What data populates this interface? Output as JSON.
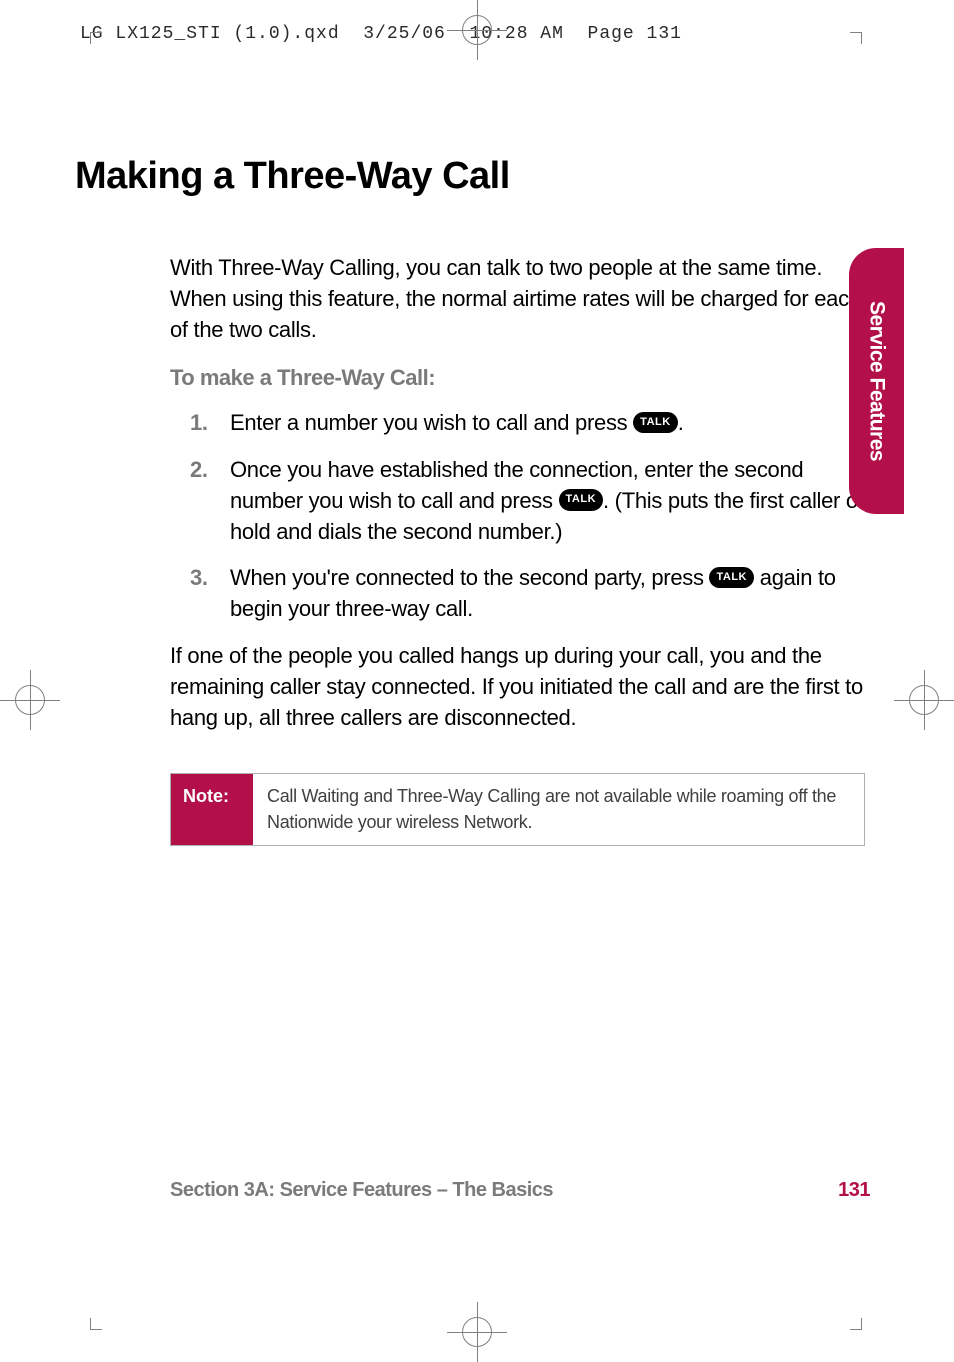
{
  "header": {
    "filename": "LG LX125_STI (1.0).qxd",
    "date": "3/25/06",
    "time": "10:28 AM",
    "page_label": "Page 131"
  },
  "title": "Making a Three-Way Call",
  "intro": "With Three-Way Calling, you can talk to two people at the same time. When using this feature, the normal airtime rates will be charged for each of the two calls.",
  "subheading": "To make a Three-Way Call:",
  "steps": [
    {
      "num": "1.",
      "before": "Enter a number you wish to call and press ",
      "button": "TALK",
      "after": "."
    },
    {
      "num": "2.",
      "before": "Once you have established the connection, enter the second number you wish to call and press ",
      "button": "TALK",
      "after": ". (This puts the first caller on hold and dials the second number.)"
    },
    {
      "num": "3.",
      "before": "When you're connected to the second party, press ",
      "button": "TALK",
      "after": " again to begin your three-way call."
    }
  ],
  "outro": "If one of the people you called hangs up during your call, you and the remaining caller stay connected. If you initiated the call and are the first to hang up, all three callers are disconnected.",
  "note": {
    "label": "Note:",
    "text": "Call Waiting and Three-Way Calling are not available while roaming off the Nationwide your wireless Network."
  },
  "side_tab": "Service Features",
  "footer": {
    "section": "Section 3A: Service Features – The Basics",
    "page": "131"
  },
  "colors": {
    "accent": "#b31049",
    "body_text": "#000000",
    "grey_text": "#7a7a7a"
  }
}
